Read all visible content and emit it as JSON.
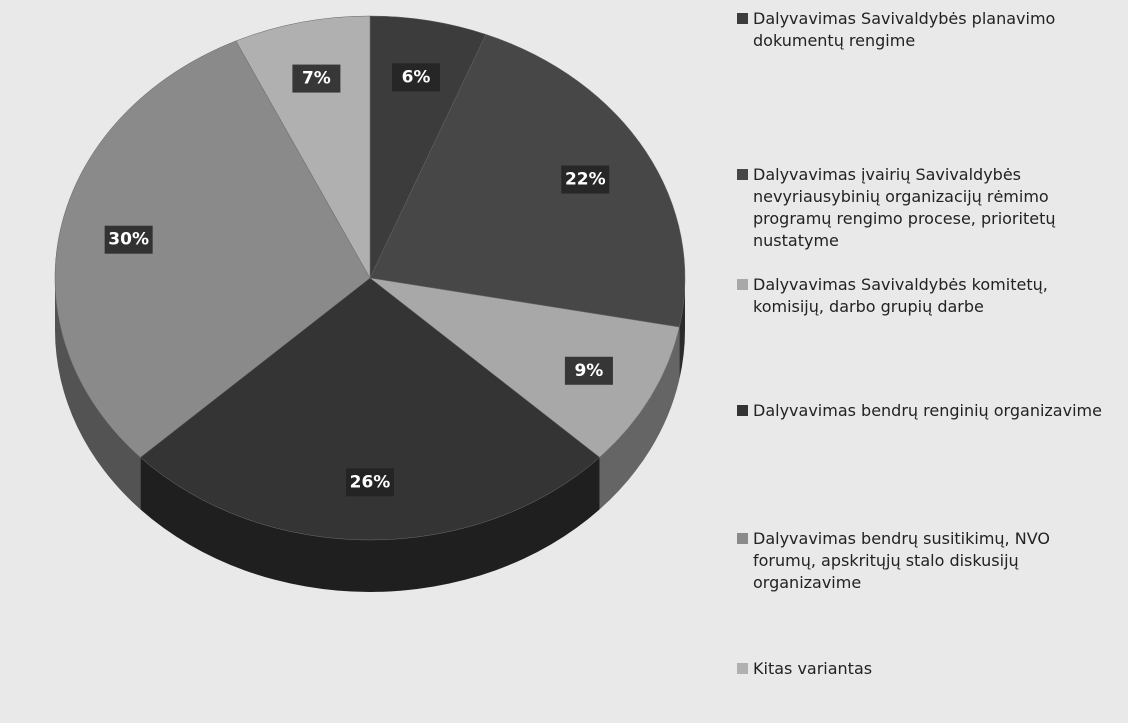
{
  "chart_data": {
    "type": "pie",
    "categories": [
      "Dalyvavimas Savivaldybės planavimo dokumentų rengime",
      "Dalyvavimas įvairių Savivaldybės nevyriausybinių organizacijų rėmimo programų rengimo procese, prioritetų nustatyme",
      "Dalyvavimas Savivaldybės komitetų, komisijų, darbo grupių darbe",
      "Dalyvavimas bendrų renginių organizavime",
      "Dalyvavimas bendrų susitikimų, NVO forumų, apskritųjų stalo diskusijų organizavime",
      "Kitas variantas"
    ],
    "values": [
      6,
      22,
      9,
      26,
      30,
      7
    ],
    "value_labels": [
      "6%",
      "22%",
      "9%",
      "26%",
      "30%",
      "7%"
    ],
    "colors": [
      "#3c3c3c",
      "#474747",
      "#a8a8a8",
      "#343434",
      "#8a8a8a",
      "#b0b0b0"
    ]
  }
}
